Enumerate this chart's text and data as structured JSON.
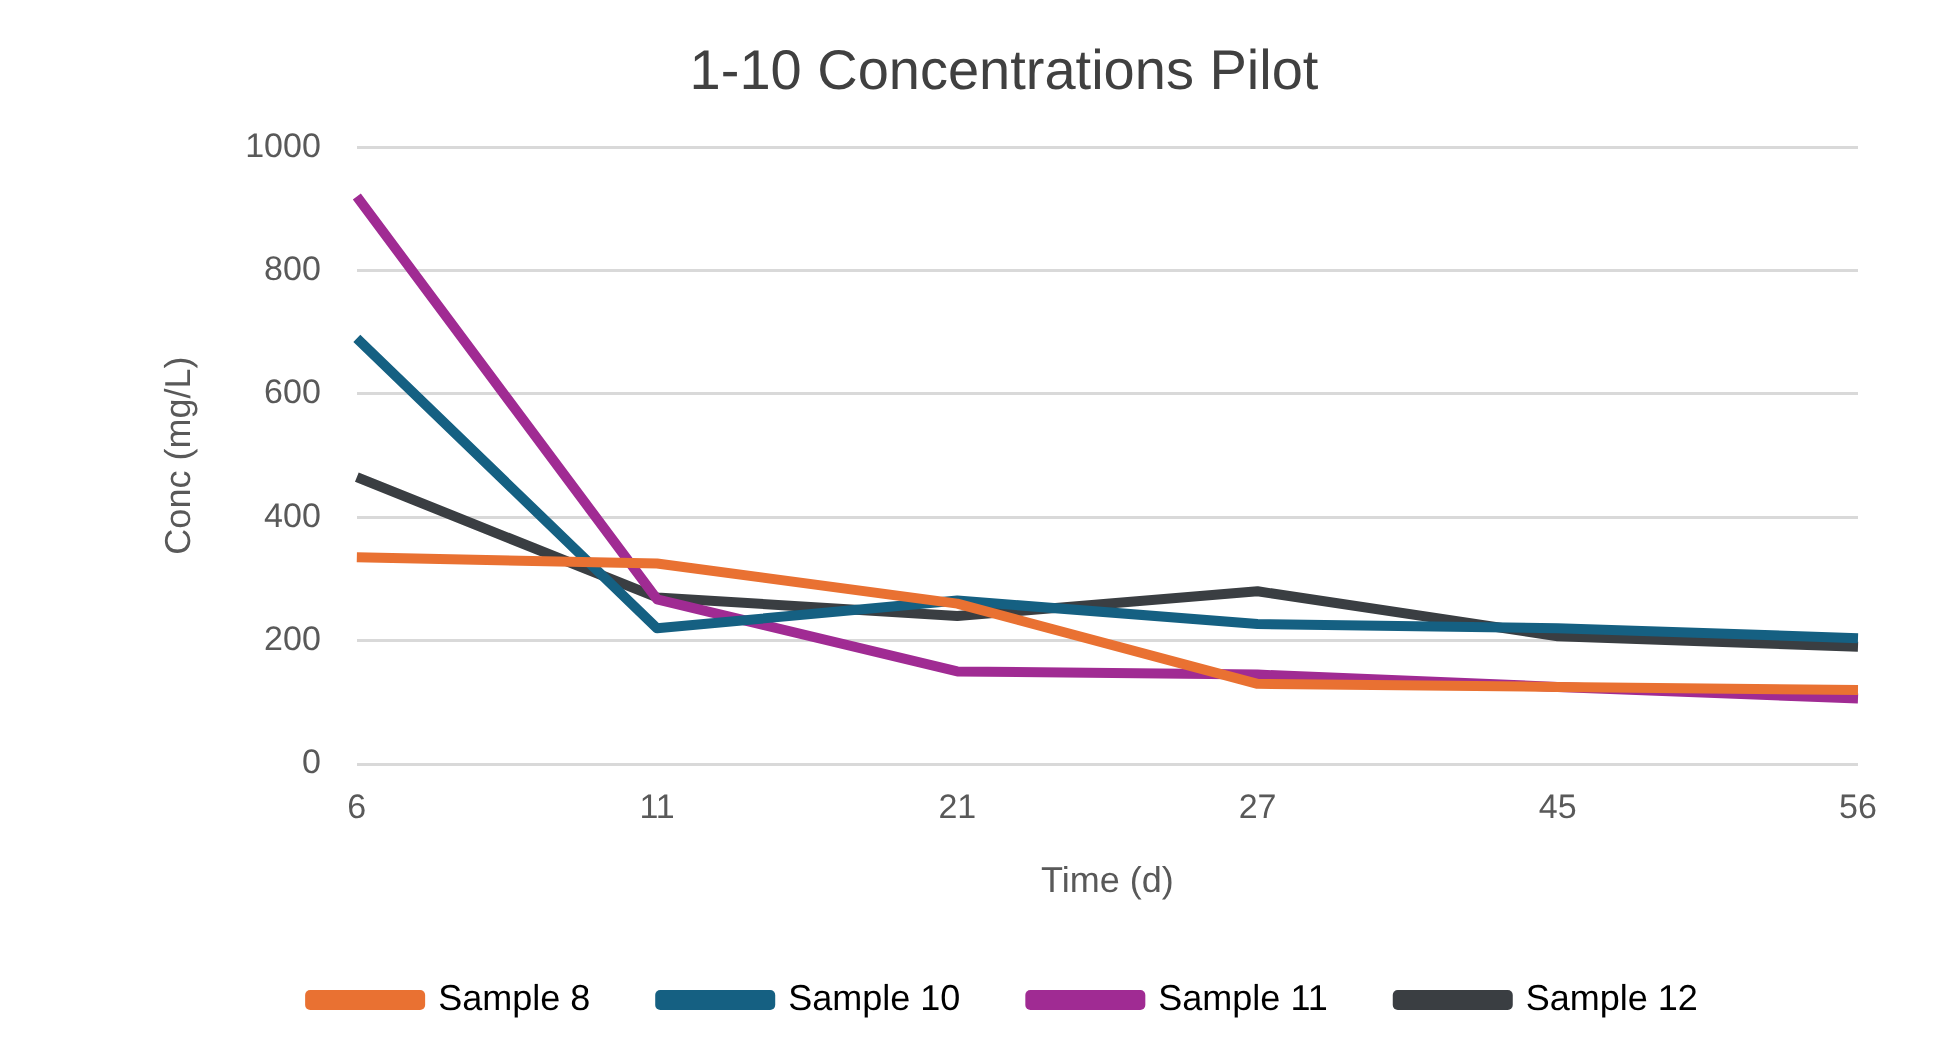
{
  "chart_data": {
    "type": "line",
    "title": "1-10 Concentrations Pilot",
    "xlabel": "Time (d)",
    "ylabel": "Conc (mg/L)",
    "categories": [
      "6",
      "11",
      "21",
      "27",
      "45",
      "56"
    ],
    "series": [
      {
        "name": "Sample 8",
        "color": "#e97132",
        "values": [
          335,
          325,
          260,
          130,
          125,
          120
        ]
      },
      {
        "name": "Sample 10",
        "color": "#156082",
        "values": [
          690,
          220,
          265,
          227,
          220,
          204
        ]
      },
      {
        "name": "Sample 11",
        "color": "#a02b93",
        "values": [
          920,
          267,
          150,
          145,
          125,
          106
        ]
      },
      {
        "name": "Sample 12",
        "color": "#3a3e42",
        "values": [
          465,
          270,
          240,
          280,
          207,
          190
        ]
      }
    ],
    "ylim": [
      0,
      1000
    ],
    "yticks": [
      0,
      200,
      400,
      600,
      800,
      1000
    ],
    "grid": "y",
    "legend": "bottom",
    "marker": "none",
    "line_style": "solid"
  }
}
